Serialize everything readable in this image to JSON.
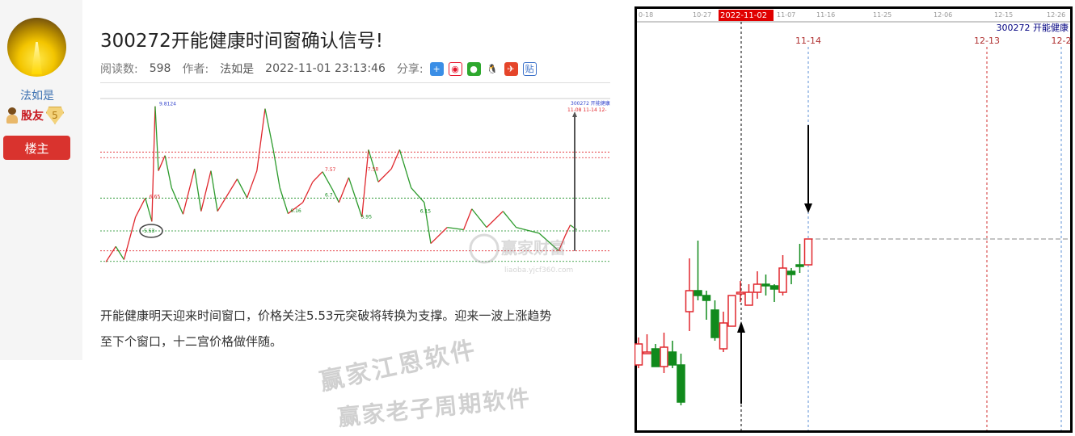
{
  "sidebar": {
    "username": "法如是",
    "rank_label": "股友",
    "level": "5",
    "owner_button": "楼主"
  },
  "post": {
    "title": "300272开能健康时间窗确认信号!",
    "reads_label": "阅读数:",
    "reads": "598",
    "author_label": "作者:",
    "author": "法如是",
    "datetime": "2022-11-01 23:13:46",
    "share_label": "分享:",
    "share_icons": [
      "plus-share-icon",
      "weibo-icon",
      "wechat-icon",
      "qq-icon",
      "qzone-icon",
      "tieba-icon"
    ],
    "paragraph_line1": "开能健康明天迎来时间窗口，价格关注5.53元突破将转换为支撑。迎来一波上涨趋势",
    "paragraph_line2": "至下个窗口，十二宫价格做伴随。"
  },
  "watermarks": {
    "text1": "赢家江恩软件",
    "text2": "赢家老子周期软件",
    "logo_text": "赢家财富",
    "logo_url": "liaoba.yjcf360.com"
  },
  "colors": {
    "up": "#e0272d",
    "down": "#118a1c",
    "owner_button": "#d9332e",
    "date_highlight": "#e00000"
  },
  "chart_data": [
    {
      "type": "line",
      "description_label": "",
      "header": {
        "code_name": "300272 开能健康",
        "dates": "11-08 11-14",
        "next": "12-"
      },
      "ylim": [
        4.4,
        10.0
      ],
      "points": [
        [
          2,
          4.47
        ],
        [
          8,
          5.0
        ],
        [
          13,
          4.55
        ],
        [
          20,
          6.0
        ],
        [
          26,
          6.65
        ],
        [
          30,
          5.85
        ],
        [
          32,
          9.78
        ],
        [
          34,
          7.58
        ],
        [
          38,
          8.1
        ],
        [
          42,
          7.0
        ],
        [
          49,
          6.1
        ],
        [
          56,
          7.65
        ],
        [
          60,
          6.2
        ],
        [
          66,
          7.58
        ],
        [
          70,
          6.2
        ],
        [
          82,
          7.3
        ],
        [
          88,
          6.66
        ],
        [
          94,
          7.58
        ],
        [
          99,
          9.7
        ],
        [
          104,
          8.3
        ],
        [
          108,
          7.0
        ],
        [
          113,
          6.12
        ],
        [
          122,
          6.5
        ],
        [
          128,
          7.2
        ],
        [
          134,
          7.55
        ],
        [
          140,
          6.95
        ],
        [
          144,
          6.5
        ],
        [
          150,
          7.35
        ],
        [
          158,
          6.0
        ],
        [
          162,
          8.3
        ],
        [
          168,
          7.2
        ],
        [
          176,
          7.65
        ],
        [
          181,
          8.3
        ],
        [
          188,
          7.0
        ],
        [
          196,
          6.5
        ],
        [
          200,
          5.1
        ],
        [
          210,
          5.65
        ],
        [
          220,
          5.57
        ],
        [
          225,
          6.28
        ],
        [
          234,
          5.65
        ],
        [
          244,
          6.2
        ],
        [
          252,
          5.65
        ],
        [
          266,
          5.45
        ],
        [
          278,
          4.85
        ],
        [
          282,
          5.38
        ],
        [
          285,
          5.73
        ],
        [
          289,
          5.57
        ]
      ],
      "levels": [
        {
          "value": 8.22,
          "color": "#e0272d",
          "label": "8.22"
        },
        {
          "value": 8.03,
          "color": "#e0272d",
          "label": "8.03"
        },
        {
          "value": 6.65,
          "color": "#118a1c",
          "label": ""
        },
        {
          "value": 5.53,
          "color": "#118a1c",
          "label": "5.53"
        },
        {
          "value": 4.85,
          "color": "#e0272d",
          "label": ""
        },
        {
          "value": 4.49,
          "color": "#118a1c",
          "label": "4.49"
        }
      ],
      "annotations": [
        {
          "day": 33,
          "value": 9.8124,
          "label": "9.8124",
          "color": "#3344cc"
        },
        {
          "day": 27,
          "value": 6.65,
          "label": "6.65",
          "color": "#e0272d"
        },
        {
          "day": 134,
          "value": 7.57,
          "label": "7.57",
          "color": "#e0272d"
        },
        {
          "day": 160,
          "value": 7.58,
          "label": "7.58",
          "color": "#e0272d"
        },
        {
          "day": 113,
          "value": 6.16,
          "label": "6.16",
          "color": "#118a1c"
        },
        {
          "day": 134,
          "value": 6.7,
          "label": "6.7",
          "color": "#118a1c"
        },
        {
          "day": 156,
          "value": 5.95,
          "label": "5.95",
          "color": "#118a1c"
        },
        {
          "day": 192,
          "value": 6.15,
          "label": "6.15",
          "color": "#118a1c"
        }
      ],
      "circled_value": "5.53"
    },
    {
      "type": "candlestick",
      "title": "300272 开能健康",
      "x_ticks": [
        "0-18",
        "10-27",
        "11-07",
        "11-16",
        "11-25",
        "12-06",
        "12-15",
        "12-26"
      ],
      "highlight_date": "2022-11-02",
      "window_dates": [
        {
          "label": "11-14",
          "line_color": "#5b8fd6"
        },
        {
          "label": "12-13",
          "line_color": "#d03030"
        },
        {
          "label": "12-2",
          "line_color": "#5b8fd6"
        }
      ],
      "ylim": [
        4.36,
        6.91
      ],
      "reference_price": 5.53,
      "candles": [
        [
          4.75,
          4.92,
          4.73,
          4.88
        ],
        [
          4.83,
          4.94,
          4.82,
          4.83
        ],
        [
          4.85,
          4.88,
          4.74,
          4.74
        ],
        [
          4.74,
          4.95,
          4.7,
          4.86
        ],
        [
          4.83,
          4.9,
          4.73,
          4.75
        ],
        [
          4.75,
          4.82,
          4.5,
          4.52
        ],
        [
          5.08,
          5.41,
          4.96,
          5.21
        ],
        [
          5.21,
          5.52,
          5.15,
          5.18
        ],
        [
          5.18,
          5.21,
          5.03,
          5.15
        ],
        [
          5.09,
          5.15,
          4.9,
          4.92
        ],
        [
          4.85,
          5.08,
          4.83,
          5.01
        ],
        [
          4.99,
          5.18,
          4.99,
          5.18
        ],
        [
          5.19,
          5.27,
          5.14,
          5.2
        ],
        [
          5.12,
          5.25,
          5.12,
          5.2
        ],
        [
          5.2,
          5.33,
          5.16,
          5.25
        ],
        [
          5.25,
          5.31,
          5.18,
          5.24
        ],
        [
          5.24,
          5.25,
          5.14,
          5.22
        ],
        [
          5.2,
          5.43,
          5.18,
          5.35
        ],
        [
          5.33,
          5.35,
          5.25,
          5.31
        ],
        [
          5.37,
          5.5,
          5.32,
          5.36
        ],
        [
          5.37,
          5.53,
          5.37,
          5.53
        ]
      ]
    }
  ]
}
